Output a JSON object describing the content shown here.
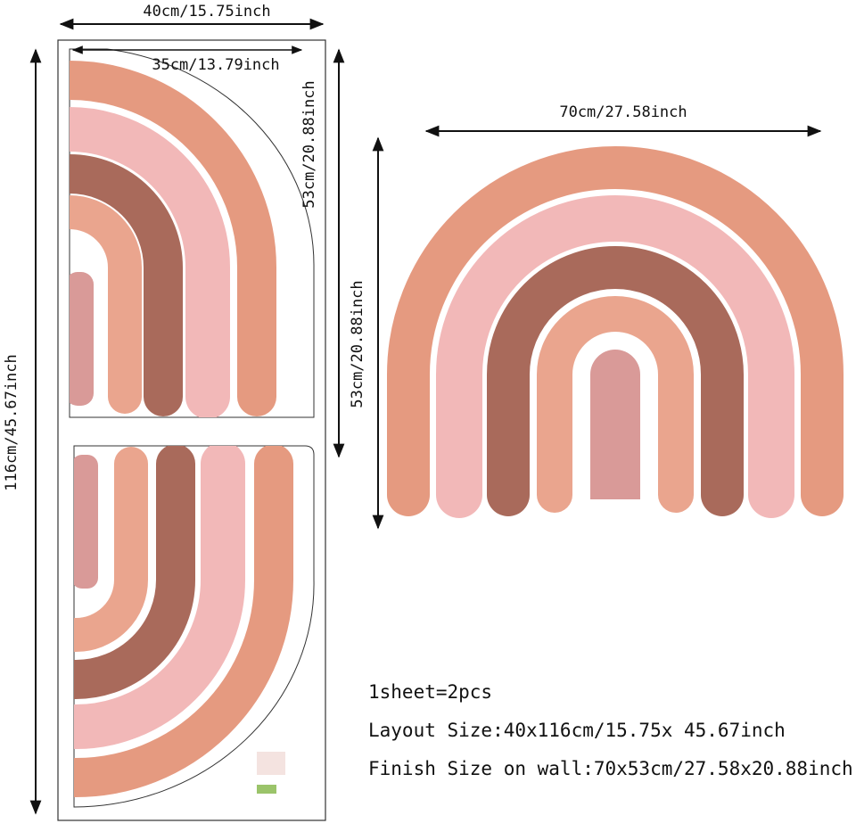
{
  "dimensions": {
    "sheet_width": "40cm/15.75inch",
    "piece_width": "35cm/13.79inch",
    "piece_height": "53cm/20.88inch",
    "sheet_height": "116cm/45.67inch",
    "finish_width": "70cm/27.58inch",
    "finish_height": "53cm/20.88inch"
  },
  "info": [
    "1sheet=2pcs",
    "Layout Size:40x116cm/15.75x 45.67inch",
    "Finish Size on wall:70x53cm/27.58x20.88inch"
  ]
}
